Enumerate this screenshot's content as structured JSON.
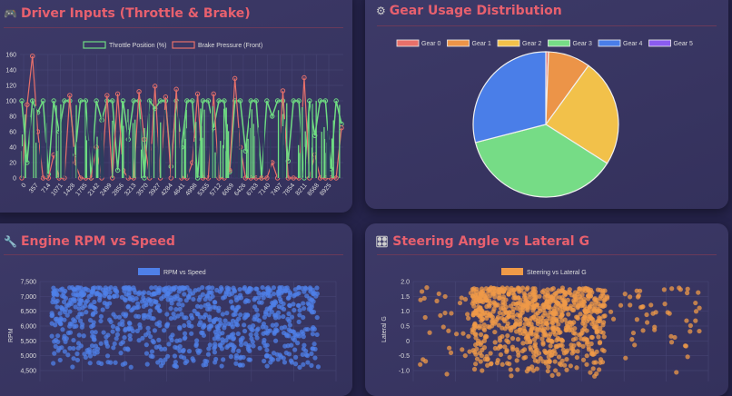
{
  "panels": {
    "driver_inputs": {
      "title": "Driver Inputs (Throttle & Brake)",
      "icon": "racing-car-icon"
    },
    "gear_usage": {
      "title": "Gear Usage Distribution",
      "icon": "gear-icon"
    },
    "rpm_speed": {
      "title": "Engine RPM vs Speed",
      "icon": "wrench-icon"
    },
    "steering": {
      "title": "Steering Angle vs Lateral G",
      "icon": "control-knobs-icon"
    }
  },
  "colors": {
    "accent": "#e8606e",
    "background": "#25234a",
    "panel": "#3a3765"
  },
  "chart_data": [
    {
      "type": "line",
      "legend": "top",
      "grid": true,
      "x_ticks": [
        "0",
        "357",
        "714",
        "1071",
        "1428",
        "1785",
        "2142",
        "2499",
        "2856",
        "3213",
        "3570",
        "3927",
        "4284",
        "4641",
        "4998",
        "5355",
        "5712",
        "6069",
        "6426",
        "6783",
        "7140",
        "7497",
        "7854",
        "8211",
        "8568",
        "8925"
      ],
      "ylim": [
        0,
        160
      ],
      "y_ticks": [
        "0",
        "20",
        "40",
        "60",
        "80",
        "100",
        "120",
        "140",
        "160"
      ],
      "series": [
        {
          "name": "Throttle Position (%)",
          "color": "#6fdc82",
          "values": [
            100,
            20,
            100,
            85,
            100,
            5,
            100,
            60,
            100,
            100,
            30,
            100,
            100,
            0,
            100,
            75,
            100,
            100,
            10,
            100,
            50,
            100,
            100,
            0,
            100,
            90,
            100,
            100,
            15,
            100,
            40,
            100,
            100,
            0,
            100,
            100,
            65,
            100,
            100,
            8,
            100,
            100,
            35,
            100,
            100,
            0,
            100,
            80,
            100,
            100,
            22,
            100,
            100,
            0,
            100,
            55,
            100,
            100,
            12,
            100,
            70
          ]
        },
        {
          "name": "Brake Pressure (Front)",
          "color": "#e8706a",
          "values": [
            0,
            95,
            158,
            60,
            0,
            0,
            30,
            0,
            0,
            107,
            20,
            0,
            0,
            0,
            40,
            0,
            107,
            0,
            109,
            10,
            0,
            0,
            112,
            50,
            0,
            119,
            0,
            105,
            0,
            115,
            0,
            0,
            20,
            109,
            0,
            0,
            109,
            0,
            0,
            10,
            129,
            40,
            0,
            0,
            0,
            0,
            0,
            20,
            0,
            113,
            0,
            0,
            0,
            130,
            0,
            30,
            0,
            0,
            0,
            0,
            65
          ]
        }
      ]
    },
    {
      "type": "pie",
      "legend": "top",
      "categories": [
        "Gear 0",
        "Gear 1",
        "Gear 2",
        "Gear 3",
        "Gear 4",
        "Gear 5"
      ],
      "values": [
        0.6,
        9.4,
        24,
        37,
        29,
        0
      ],
      "colors": [
        "#e8706a",
        "#ec9448",
        "#f2c14a",
        "#76dc86",
        "#4a7ee8",
        "#8b5cf0"
      ]
    },
    {
      "type": "scatter",
      "legend": "top",
      "series": [
        {
          "name": "RPM vs Speed",
          "color": "#4f80e8"
        }
      ],
      "ylabel": "RPM",
      "y_ticks": [
        "4,500",
        "5,000",
        "5,500",
        "6,000",
        "6,500",
        "7,000",
        "7,500"
      ],
      "ylim": [
        4500,
        7500
      ],
      "grid": true
    },
    {
      "type": "scatter",
      "legend": "top",
      "series": [
        {
          "name": "Steering vs Lateral G",
          "color": "#ef9a48"
        }
      ],
      "ylabel": "Lateral G",
      "y_ticks": [
        "-1.0",
        "-0.5",
        "0",
        "0.5",
        "1.0",
        "1.5",
        "2.0"
      ],
      "ylim": [
        -1.0,
        2.0
      ],
      "grid": true
    }
  ]
}
